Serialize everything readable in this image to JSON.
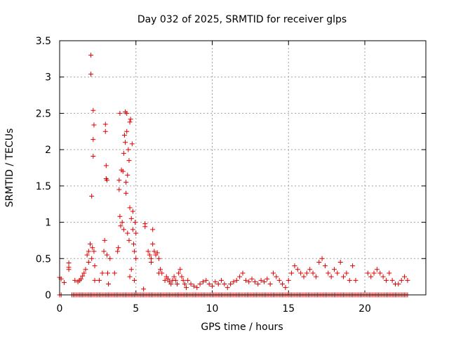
{
  "chart_data": {
    "type": "scatter",
    "title": "Day 032 of 2025, SRMTID for receiver glps",
    "xlabel": "GPS time / hours",
    "ylabel": "SRMTID / TECUs",
    "xlim": [
      0,
      24
    ],
    "ylim": [
      0,
      3.5
    ],
    "xticks": [
      0,
      5,
      10,
      15,
      20
    ],
    "xtick_labels": [
      "0",
      "5",
      "10",
      "15",
      "20"
    ],
    "yticks": [
      0,
      0.5,
      1,
      1.5,
      2,
      2.5,
      3,
      3.5
    ],
    "ytick_labels": [
      "0",
      "0.5",
      "1",
      "1.5",
      "2",
      "2.5",
      "3",
      "3.5"
    ],
    "grid": true,
    "marker": "+",
    "color": "#e00000",
    "series": [
      {
        "name": "SRMTID",
        "points": [
          [
            0.0,
            0.24
          ],
          [
            0.1,
            0.22
          ],
          [
            0.3,
            0.17
          ],
          [
            0.6,
            0.38
          ],
          [
            0.6,
            0.44
          ],
          [
            0.6,
            0.35
          ],
          [
            1.0,
            0.2
          ],
          [
            1.2,
            0.18
          ],
          [
            1.3,
            0.2
          ],
          [
            1.4,
            0.22
          ],
          [
            1.5,
            0.26
          ],
          [
            1.6,
            0.3
          ],
          [
            1.7,
            0.35
          ],
          [
            1.8,
            0.55
          ],
          [
            1.9,
            0.6
          ],
          [
            1.9,
            0.45
          ],
          [
            2.0,
            0.7
          ],
          [
            2.05,
            3.3
          ],
          [
            2.05,
            3.04
          ],
          [
            2.1,
            1.36
          ],
          [
            2.1,
            0.5
          ],
          [
            2.15,
            0.65
          ],
          [
            2.2,
            2.54
          ],
          [
            2.2,
            2.14
          ],
          [
            2.2,
            1.91
          ],
          [
            2.25,
            2.34
          ],
          [
            2.25,
            0.6
          ],
          [
            2.3,
            0.4
          ],
          [
            2.3,
            0.2
          ],
          [
            2.6,
            0.2
          ],
          [
            2.8,
            0.3
          ],
          [
            2.9,
            0.6
          ],
          [
            2.95,
            0.75
          ],
          [
            3.0,
            2.35
          ],
          [
            3.0,
            2.25
          ],
          [
            3.05,
            1.78
          ],
          [
            3.05,
            1.6
          ],
          [
            3.1,
            1.58
          ],
          [
            3.1,
            0.55
          ],
          [
            3.15,
            0.3
          ],
          [
            3.2,
            0.15
          ],
          [
            3.3,
            0.5
          ],
          [
            3.6,
            0.3
          ],
          [
            3.8,
            0.6
          ],
          [
            3.85,
            0.65
          ],
          [
            3.9,
            1.58
          ],
          [
            3.9,
            1.45
          ],
          [
            3.95,
            2.5
          ],
          [
            3.95,
            1.08
          ],
          [
            4.0,
            0.95
          ],
          [
            4.05,
            1.72
          ],
          [
            4.1,
            1.0
          ],
          [
            4.15,
            1.7
          ],
          [
            4.2,
            1.95
          ],
          [
            4.2,
            0.9
          ],
          [
            4.25,
            2.2
          ],
          [
            4.3,
            2.52
          ],
          [
            4.3,
            2.1
          ],
          [
            4.35,
            1.55
          ],
          [
            4.35,
            1.4
          ],
          [
            4.4,
            2.5
          ],
          [
            4.4,
            2.25
          ],
          [
            4.45,
            1.65
          ],
          [
            4.45,
            0.85
          ],
          [
            4.5,
            2.0
          ],
          [
            4.55,
            1.85
          ],
          [
            4.55,
            0.75
          ],
          [
            4.6,
            2.38
          ],
          [
            4.6,
            1.2
          ],
          [
            4.65,
            2.42
          ],
          [
            4.7,
            1.05
          ],
          [
            4.75,
            2.08
          ],
          [
            4.8,
            1.15
          ],
          [
            4.8,
            0.9
          ],
          [
            4.85,
            0.7
          ],
          [
            4.9,
            0.6
          ],
          [
            4.95,
            1.0
          ],
          [
            5.0,
            0.85
          ],
          [
            5.0,
            0.5
          ],
          [
            4.7,
            0.35
          ],
          [
            4.6,
            0.25
          ],
          [
            4.9,
            0.2
          ],
          [
            5.5,
            0.08
          ],
          [
            5.6,
            0.98
          ],
          [
            5.6,
            0.94
          ],
          [
            5.8,
            0.6
          ],
          [
            5.9,
            0.55
          ],
          [
            6.0,
            0.5
          ],
          [
            6.0,
            0.45
          ],
          [
            6.1,
            0.9
          ],
          [
            6.1,
            0.7
          ],
          [
            6.2,
            0.6
          ],
          [
            6.3,
            0.55
          ],
          [
            6.4,
            0.58
          ],
          [
            6.5,
            0.5
          ],
          [
            6.5,
            0.3
          ],
          [
            6.6,
            0.35
          ],
          [
            6.7,
            0.3
          ],
          [
            6.9,
            0.2
          ],
          [
            7.0,
            0.25
          ],
          [
            7.1,
            0.22
          ],
          [
            7.2,
            0.18
          ],
          [
            7.3,
            0.15
          ],
          [
            7.4,
            0.2
          ],
          [
            7.5,
            0.25
          ],
          [
            7.6,
            0.2
          ],
          [
            7.7,
            0.15
          ],
          [
            7.8,
            0.3
          ],
          [
            7.9,
            0.35
          ],
          [
            8.0,
            0.25
          ],
          [
            8.1,
            0.2
          ],
          [
            8.2,
            0.15
          ],
          [
            8.3,
            0.1
          ],
          [
            8.4,
            0.2
          ],
          [
            8.6,
            0.15
          ],
          [
            8.8,
            0.12
          ],
          [
            9.0,
            0.1
          ],
          [
            9.2,
            0.15
          ],
          [
            9.4,
            0.18
          ],
          [
            9.6,
            0.2
          ],
          [
            9.8,
            0.15
          ],
          [
            10.0,
            0.12
          ],
          [
            10.2,
            0.18
          ],
          [
            10.4,
            0.15
          ],
          [
            10.6,
            0.2
          ],
          [
            10.8,
            0.15
          ],
          [
            11.0,
            0.1
          ],
          [
            11.2,
            0.15
          ],
          [
            11.4,
            0.18
          ],
          [
            11.6,
            0.2
          ],
          [
            11.8,
            0.25
          ],
          [
            12.0,
            0.3
          ],
          [
            12.2,
            0.2
          ],
          [
            12.4,
            0.18
          ],
          [
            12.6,
            0.22
          ],
          [
            12.8,
            0.18
          ],
          [
            13.0,
            0.15
          ],
          [
            13.2,
            0.2
          ],
          [
            13.4,
            0.18
          ],
          [
            13.6,
            0.22
          ],
          [
            13.8,
            0.15
          ],
          [
            14.0,
            0.3
          ],
          [
            14.2,
            0.25
          ],
          [
            14.4,
            0.2
          ],
          [
            14.6,
            0.15
          ],
          [
            14.8,
            0.1
          ],
          [
            15.0,
            0.2
          ],
          [
            15.2,
            0.3
          ],
          [
            15.4,
            0.4
          ],
          [
            15.6,
            0.35
          ],
          [
            15.8,
            0.3
          ],
          [
            16.0,
            0.25
          ],
          [
            16.2,
            0.3
          ],
          [
            16.4,
            0.35
          ],
          [
            16.6,
            0.3
          ],
          [
            16.8,
            0.25
          ],
          [
            17.0,
            0.45
          ],
          [
            17.2,
            0.5
          ],
          [
            17.4,
            0.4
          ],
          [
            17.6,
            0.3
          ],
          [
            17.8,
            0.25
          ],
          [
            18.0,
            0.35
          ],
          [
            18.2,
            0.3
          ],
          [
            18.4,
            0.45
          ],
          [
            18.6,
            0.25
          ],
          [
            18.8,
            0.3
          ],
          [
            19.0,
            0.2
          ],
          [
            19.2,
            0.4
          ],
          [
            19.4,
            0.2
          ],
          [
            20.2,
            0.3
          ],
          [
            20.4,
            0.25
          ],
          [
            20.6,
            0.3
          ],
          [
            20.8,
            0.35
          ],
          [
            21.0,
            0.3
          ],
          [
            21.2,
            0.25
          ],
          [
            21.4,
            0.2
          ],
          [
            21.6,
            0.3
          ],
          [
            21.8,
            0.2
          ],
          [
            22.0,
            0.15
          ],
          [
            22.2,
            0.15
          ],
          [
            22.4,
            0.2
          ],
          [
            22.6,
            0.25
          ],
          [
            22.8,
            0.2
          ]
        ],
        "zero_band_x_ranges": [
          [
            0.0,
            0.1
          ],
          [
            0.8,
            22.8
          ]
        ],
        "zero_band_step": 0.1
      }
    ]
  }
}
